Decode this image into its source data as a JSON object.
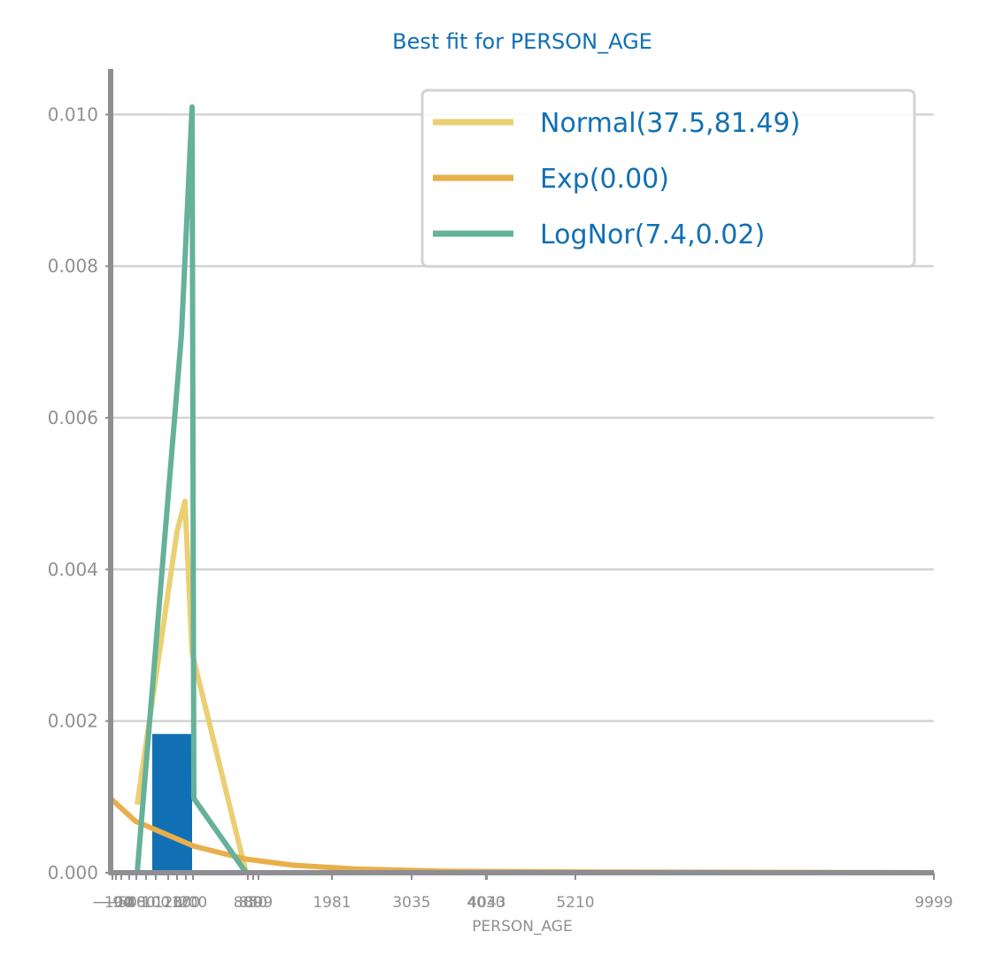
{
  "chart_data": {
    "type": "line",
    "title": "Best fit for PERSON_AGE",
    "xlabel": "PERSON_AGE",
    "ylabel": "",
    "xlim": [
      -100,
      9999
    ],
    "ylim": [
      0,
      0.0106
    ],
    "grid": "horizontal",
    "legend_position": "top-right",
    "yticks": [
      0.0,
      0.002,
      0.004,
      0.006,
      0.008,
      0.01
    ],
    "ytick_labels": [
      "0.000",
      "0.002",
      "0.004",
      "0.006",
      "0.008",
      "0.010"
    ],
    "xticks": [
      -100,
      -94,
      -50,
      0,
      40,
      80,
      100,
      120,
      130,
      170,
      200,
      800,
      850,
      899,
      1981,
      3035,
      4030,
      4043,
      5210,
      9999
    ],
    "xtick_labels": [
      "−100",
      "−94",
      "−50",
      "0",
      "40",
      "80",
      "100",
      "120",
      "130",
      "170",
      "200",
      "800",
      "850",
      "899",
      "1981",
      "3035",
      "4030",
      "4043",
      "5210",
      "9999"
    ],
    "histogram": {
      "name": "PERSON_AGE",
      "color": "#1170b4",
      "bins": [
        {
          "x0": 340,
          "x1": 850,
          "density": 0.00183
        }
      ]
    },
    "series": [
      {
        "name": "Normal(37.5,81.49)",
        "color": "#ead072",
        "x": [
          350,
          740,
          840,
          860,
          1500
        ],
        "y": [
          0.0009,
          0.0045,
          0.0049,
          0.0029,
          0.0
        ]
      },
      {
        "name": "Exp(0.00)",
        "color": "#e9af4b",
        "x": [
          0,
          300,
          900,
          1500,
          2200,
          3000,
          4000,
          5210,
          9999
        ],
        "y": [
          0.00098,
          0.00068,
          0.00035,
          0.00018,
          0.0001,
          5e-05,
          2e-05,
          1e-05,
          0.0
        ]
      },
      {
        "name": "LogNor(7.4,0.02)",
        "color": "#65b19a",
        "x": [
          350,
          830,
          860,
          900,
          1500
        ],
        "y": [
          0.0,
          0.0071,
          0.0101,
          0.00098,
          0.0
        ]
      }
    ]
  }
}
